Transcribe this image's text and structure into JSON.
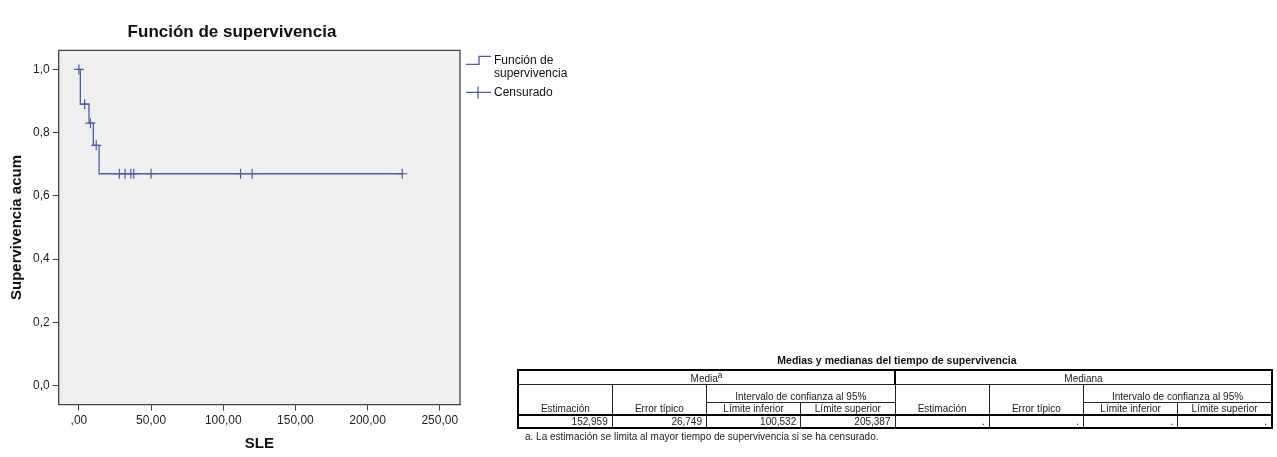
{
  "chart_data": [
    {
      "type": "step",
      "title": "Función de supervivencia",
      "xlabel": "SLE",
      "ylabel": "Supervivencia acum",
      "xlim": [
        -14,
        264
      ],
      "ylim": [
        -0.06,
        1.06
      ],
      "xticks": [
        {
          "value": 0,
          "label": ",00"
        },
        {
          "value": 50,
          "label": "50,00"
        },
        {
          "value": 100,
          "label": "100,00"
        },
        {
          "value": 150,
          "label": "150,00"
        },
        {
          "value": 200,
          "label": "200,00"
        },
        {
          "value": 250,
          "label": "250,00"
        }
      ],
      "yticks": [
        {
          "value": 0,
          "label": "0,0"
        },
        {
          "value": 0.2,
          "label": "0,2"
        },
        {
          "value": 0.4,
          "label": "0,4"
        },
        {
          "value": 0.6,
          "label": "0,6"
        },
        {
          "value": 0.8,
          "label": "0,8"
        },
        {
          "value": 1,
          "label": "1,0"
        }
      ],
      "legend": "top right",
      "series": [
        {
          "name": "Función de supervivencia",
          "type": "step",
          "color": "#4b5ea8",
          "marker": "none",
          "x": [
            0,
            1,
            7,
            10,
            14,
            224
          ],
          "values": [
            1.0,
            0.89,
            0.83,
            0.76,
            0.67,
            0.67
          ]
        },
        {
          "name": "Censurado",
          "type": "scatter",
          "color": "#4b5ea8",
          "marker": "cross",
          "x": [
            0,
            4,
            8,
            12,
            28,
            32,
            36,
            38,
            50,
            112,
            120,
            224
          ],
          "values": [
            1.0,
            0.89,
            0.83,
            0.76,
            0.67,
            0.67,
            0.67,
            0.67,
            0.67,
            0.67,
            0.67,
            0.67
          ]
        }
      ]
    },
    {
      "type": "other",
      "title": "Medias y medianas del tiempo de supervivencia",
      "categories": [
        "Estimación",
        "Error típico",
        "Límite inferior",
        "Límite superior",
        "Estimación",
        "Error típico",
        "Límite inferior",
        "Límite superior"
      ],
      "value_labels": [
        "152,959",
        "26,749",
        "100,532",
        "205,387",
        ".",
        ".",
        ".",
        "."
      ],
      "annotations": [
        "Media$^{a}$",
        "Mediana",
        "Intervalo de confianza al 95%",
        "Intervalo de confianza al 95%",
        "a. La estimación se limita al mayor tiempo de supervivencia si se ha censurado."
      ]
    }
  ]
}
